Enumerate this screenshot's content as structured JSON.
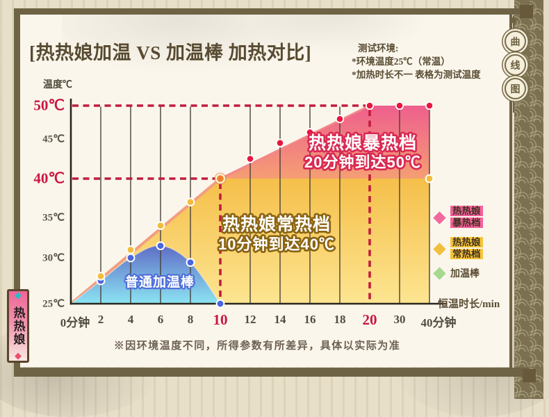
{
  "page": {
    "title": "[热热娘加温 VS 加温棒 加热对比]",
    "env_note": {
      "line1": "测试环境:",
      "line2": "*环境温度25℃（常温）",
      "line3": "*加热时长不一 表格为测试温度"
    },
    "disclaimer": "※因环境温度不同，所得参数有所差异，具体以实际为准",
    "side_banner": "热热娘",
    "stamp_chars": [
      "曲",
      "线",
      "图"
    ],
    "accent_red": "#c9173f"
  },
  "chart_data": {
    "type": "area",
    "title": "[热热娘加温 VS 加温棒 加热对比]",
    "ylabel": "温度℃",
    "xlabel": "恒温时长/min",
    "ylim": [
      25,
      50
    ],
    "grid": true,
    "legend_position": "right",
    "x_ticks": [
      {
        "minute": 0,
        "label": "0分钟",
        "emphasized": false
      },
      {
        "minute": 2,
        "label": "2",
        "emphasized": false
      },
      {
        "minute": 4,
        "label": "4",
        "emphasized": false
      },
      {
        "minute": 6,
        "label": "6",
        "emphasized": false
      },
      {
        "minute": 8,
        "label": "8",
        "emphasized": false
      },
      {
        "minute": 10,
        "label": "10",
        "emphasized": true
      },
      {
        "minute": 12,
        "label": "12",
        "emphasized": false
      },
      {
        "minute": 14,
        "label": "14",
        "emphasized": false
      },
      {
        "minute": 16,
        "label": "16",
        "emphasized": false
      },
      {
        "minute": 18,
        "label": "18",
        "emphasized": false
      },
      {
        "minute": 20,
        "label": "20",
        "emphasized": true
      },
      {
        "minute": 30,
        "label": "30",
        "emphasized": false
      },
      {
        "minute": 40,
        "label": "40分钟",
        "emphasized": false
      }
    ],
    "y_ticks": [
      {
        "temp": 25,
        "label": "25℃",
        "emphasized": false
      },
      {
        "temp": 30,
        "label": "30℃",
        "emphasized": false
      },
      {
        "temp": 35,
        "label": "35℃",
        "emphasized": false
      },
      {
        "temp": 40,
        "label": "40℃",
        "emphasized": true
      },
      {
        "temp": 45,
        "label": "45℃",
        "emphasized": true
      },
      {
        "temp": 50,
        "label": "50℃",
        "emphasized": true
      }
    ],
    "y_ticks_red": [
      "40℃",
      "50℃"
    ],
    "reference_lines": [
      {
        "axis": "y",
        "value": 50,
        "style": "dashed-red",
        "to_minute": 20
      },
      {
        "axis": "y",
        "value": 40,
        "style": "dashed-red",
        "to_minute": 10
      },
      {
        "axis": "x",
        "value": 10,
        "style": "dashed-red",
        "to_temp": 40
      },
      {
        "axis": "x",
        "value": 20,
        "style": "dashed-red",
        "to_temp": 50
      }
    ],
    "series": [
      {
        "name": "热热娘暴热档",
        "dot_color": "#e8173f",
        "fill_gradient": [
          "#ee5f8d",
          "#f59e74"
        ],
        "points": [
          [
            10,
            40
          ],
          [
            12,
            42.5
          ],
          [
            14,
            44.5
          ],
          [
            16,
            46
          ],
          [
            18,
            48
          ],
          [
            20,
            50
          ],
          [
            30,
            50
          ],
          [
            40,
            50
          ]
        ]
      },
      {
        "name": "热热娘常热档",
        "dot_color": "#f2bd3f",
        "fill_gradient": [
          "#f5bf4a",
          "#fde591"
        ],
        "points": [
          [
            0,
            25
          ],
          [
            2,
            28
          ],
          [
            4,
            31
          ],
          [
            6,
            34
          ],
          [
            8,
            37
          ],
          [
            10,
            40
          ],
          [
            40,
            40
          ]
        ]
      },
      {
        "name": "加温棒",
        "dot_color": "#4a66de",
        "fill_gradient": [
          "#5d68c4",
          "#8be4f2"
        ],
        "points": [
          [
            0,
            25
          ],
          [
            2,
            27.5
          ],
          [
            4,
            30
          ],
          [
            6,
            31.5
          ],
          [
            8,
            29.5
          ],
          [
            10,
            25
          ]
        ]
      }
    ],
    "annotations": [
      {
        "lines": [
          "热热娘暴热档",
          "20分钟到达50℃"
        ],
        "stroke": "#d92a52"
      },
      {
        "lines": [
          "热热娘常热档",
          "10分钟到达40℃"
        ],
        "stroke": "#8a6413"
      },
      {
        "lines": [
          "普通加温棒"
        ],
        "stroke": "#4f6fd8"
      }
    ],
    "legend": [
      {
        "label_lines": [
          "热热娘",
          "暴热档"
        ],
        "diamond": "#f0699e",
        "highlight": "#f4619b"
      },
      {
        "label_lines": [
          "热热娘",
          "常热档"
        ],
        "diamond": "#f2bf3d",
        "highlight": "#f5c438"
      },
      {
        "label_lines": [
          "加温棒"
        ],
        "diamond": "#a6d88e",
        "highlight": null
      }
    ]
  }
}
